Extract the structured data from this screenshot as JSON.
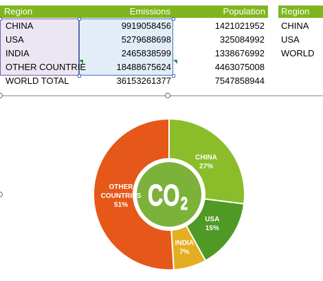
{
  "table": {
    "headers": [
      "Region",
      "Emissions",
      "Population"
    ],
    "rows": [
      {
        "region": "CHINA",
        "emissions": "9919058456",
        "population": "1421021952"
      },
      {
        "region": "USA",
        "emissions": "5279688698",
        "population": "325084992"
      },
      {
        "region": "INDIA",
        "emissions": "2465838599",
        "population": "1338676992"
      },
      {
        "region": "OTHER COUNTRIE",
        "emissions": "18488675624",
        "population": "4463075008"
      },
      {
        "region": "WORLD TOTAL",
        "emissions": "36153261377",
        "population": "7547858944"
      }
    ]
  },
  "side_table": {
    "header": "Region",
    "items": [
      "CHINA",
      "USA",
      "WORLD"
    ]
  },
  "colors": {
    "header_green": "#7fb61f",
    "china": "#8bbd2a",
    "usa": "#4f9a24",
    "india": "#e3ae22",
    "other": "#e5581a",
    "center": "#7cb23a"
  },
  "chart_data": {
    "type": "pie",
    "variant": "doughnut",
    "center_label": "CO",
    "center_subscript": "2",
    "slices": [
      {
        "label": "CHINA",
        "value": 27,
        "pct_label": "27%",
        "color": "#8bbd2a"
      },
      {
        "label": "USA",
        "value": 15,
        "pct_label": "15%",
        "color": "#4f9a24"
      },
      {
        "label": "INDIA",
        "value": 7,
        "pct_label": "7%",
        "color": "#e3ae22"
      },
      {
        "label": "OTHER COUNTRIES",
        "label_lines": [
          "OTHER",
          "COUNTRIES"
        ],
        "value": 51,
        "pct_label": "51%",
        "color": "#e5581a"
      }
    ]
  }
}
